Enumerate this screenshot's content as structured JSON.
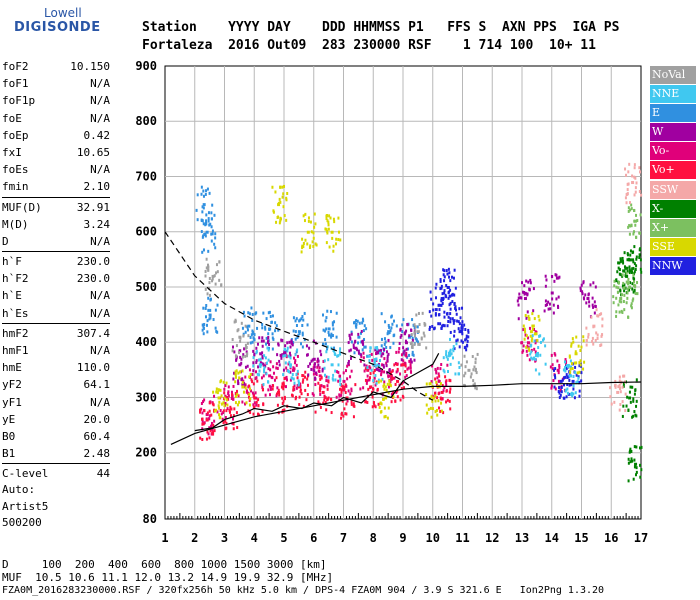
{
  "logo": {
    "line1": "Lowell",
    "line2": "DIGISONDE"
  },
  "header": {
    "labels": "Station    YYYY DAY    DDD HHMMSS P1   FFS S  AXN PPS  IGA PS",
    "values": "Fortaleza  2016 Out09  283 230000 RSF    1 714 100  10+ 11"
  },
  "params": [
    {
      "k": "foF2",
      "v": "10.150"
    },
    {
      "k": "foF1",
      "v": "N/A"
    },
    {
      "k": "foF1p",
      "v": "N/A"
    },
    {
      "k": "foE",
      "v": "N/A"
    },
    {
      "k": "foEp",
      "v": "0.42"
    },
    {
      "k": "fxI",
      "v": "10.65"
    },
    {
      "k": "foEs",
      "v": "N/A"
    },
    {
      "k": "fmin",
      "v": "2.10"
    },
    {
      "sep": true
    },
    {
      "k": "MUF(D)",
      "v": "32.91"
    },
    {
      "k": "M(D)",
      "v": "3.24"
    },
    {
      "k": "D",
      "v": "N/A"
    },
    {
      "sep": true
    },
    {
      "k": "h`F",
      "v": "230.0"
    },
    {
      "k": "h`F2",
      "v": "230.0"
    },
    {
      "k": "h`E",
      "v": "N/A"
    },
    {
      "k": "h`Es",
      "v": "N/A"
    },
    {
      "sep": true
    },
    {
      "k": "hmF2",
      "v": "307.4"
    },
    {
      "k": "hmF1",
      "v": "N/A"
    },
    {
      "k": "hmE",
      "v": "110.0"
    },
    {
      "k": "yF2",
      "v": "64.1"
    },
    {
      "k": "yF1",
      "v": "N/A"
    },
    {
      "k": "yE",
      "v": "20.0"
    },
    {
      "k": "B0",
      "v": "60.4"
    },
    {
      "k": "B1",
      "v": "2.48"
    },
    {
      "sep": true
    },
    {
      "k": "C-level",
      "v": "44"
    }
  ],
  "auto": [
    "Auto:",
    "Artist5",
    "500200"
  ],
  "legend": [
    {
      "label": "NoVal",
      "color": "#a0a0a0"
    },
    {
      "label": "NNE",
      "color": "#40c8f0"
    },
    {
      "label": "E",
      "color": "#3090e0"
    },
    {
      "label": "W",
      "color": "#a000a0"
    },
    {
      "label": "Vo-",
      "color": "#e0007a"
    },
    {
      "label": "Vo+",
      "color": "#ff1040"
    },
    {
      "label": "SSW",
      "color": "#f4a8a8"
    },
    {
      "label": "X-",
      "color": "#008000"
    },
    {
      "label": "X+",
      "color": "#7cc060"
    },
    {
      "label": "SSE",
      "color": "#d8d800"
    },
    {
      "label": "NNW",
      "color": "#2020e0"
    }
  ],
  "bottom": {
    "d_line": "D     100  200  400  600  800 1000 1500 3000 [km]",
    "muf_line": "MUF  10.5 10.6 11.1 12.0 13.2 14.9 19.9 32.9 [MHz]",
    "info_line": "FZA0M_2016283230000.RSF / 320fx256h 50 kHz 5.0 km / DPS-4 FZA0M 904 / 3.9 S 321.6 E   Ion2Png 1.3.20"
  },
  "chart_data": {
    "type": "scatter",
    "xlabel": "",
    "ylabel": "",
    "x_ticks": [
      "1",
      "2",
      "3",
      "4",
      "5",
      "6",
      "7",
      "8",
      "9",
      "10",
      "11",
      "12",
      "13",
      "14",
      "15",
      "16",
      "17"
    ],
    "y_ticks": [
      "80",
      "200",
      "300",
      "400",
      "500",
      "600",
      "700",
      "800",
      "900"
    ],
    "xlim": [
      1,
      17
    ],
    "ylim": [
      80,
      900
    ],
    "grid": true,
    "legend_position": "right",
    "series": [
      {
        "name": "E",
        "color": "#3090e0",
        "points": [
          [
            3.8,
            430
          ],
          [
            4.5,
            425
          ],
          [
            5.5,
            420
          ],
          [
            6.5,
            425
          ],
          [
            7.5,
            410
          ],
          [
            8.5,
            420
          ],
          [
            9.2,
            410
          ],
          [
            2.5,
            450
          ],
          [
            2.4,
            600
          ],
          [
            2.3,
            650
          ]
        ]
      },
      {
        "name": "Vo-",
        "color": "#e0007a",
        "points": [
          [
            2.4,
            270
          ],
          [
            3.0,
            290
          ],
          [
            3.8,
            320
          ],
          [
            4.5,
            340
          ],
          [
            5.3,
            350
          ],
          [
            6.2,
            340
          ],
          [
            7.0,
            330
          ],
          [
            7.8,
            350
          ],
          [
            8.5,
            340
          ],
          [
            9.0,
            360
          ],
          [
            10.2,
            330
          ],
          [
            13.2,
            400
          ],
          [
            14.2,
            350
          ]
        ]
      },
      {
        "name": "Vo+",
        "color": "#ff1040",
        "points": [
          [
            2.4,
            260
          ],
          [
            3.2,
            280
          ],
          [
            4.0,
            300
          ],
          [
            4.8,
            310
          ],
          [
            5.5,
            320
          ],
          [
            6.3,
            310
          ],
          [
            7.1,
            300
          ],
          [
            7.9,
            320
          ],
          [
            8.8,
            330
          ],
          [
            10.3,
            310
          ]
        ]
      },
      {
        "name": "W",
        "color": "#a000a0",
        "points": [
          [
            3.5,
            360
          ],
          [
            4.2,
            380
          ],
          [
            5.0,
            380
          ],
          [
            6.0,
            370
          ],
          [
            7.4,
            390
          ],
          [
            8.3,
            380
          ],
          [
            9.1,
            400
          ],
          [
            13.1,
            480
          ],
          [
            14.0,
            490
          ],
          [
            15.2,
            480
          ]
        ]
      },
      {
        "name": "NNW",
        "color": "#2020e0",
        "points": [
          [
            10.1,
            460
          ],
          [
            10.3,
            480
          ],
          [
            10.5,
            500
          ],
          [
            10.7,
            440
          ],
          [
            10.9,
            420
          ],
          [
            14.3,
            330
          ],
          [
            14.7,
            330
          ]
        ]
      },
      {
        "name": "NNE",
        "color": "#40c8f0",
        "points": [
          [
            4.2,
            360
          ],
          [
            5.2,
            360
          ],
          [
            6.6,
            360
          ],
          [
            8.0,
            360
          ],
          [
            10.6,
            380
          ],
          [
            13.5,
            380
          ],
          [
            14.6,
            340
          ]
        ]
      },
      {
        "name": "SSE",
        "color": "#d8d800",
        "points": [
          [
            2.8,
            300
          ],
          [
            3.6,
            320
          ],
          [
            5.8,
            600
          ],
          [
            6.6,
            600
          ],
          [
            8.4,
            300
          ],
          [
            10.0,
            300
          ],
          [
            13.3,
            420
          ],
          [
            14.8,
            380
          ],
          [
            4.8,
            650
          ]
        ]
      },
      {
        "name": "X-",
        "color": "#008000",
        "points": [
          [
            16.4,
            530
          ],
          [
            16.5,
            520
          ],
          [
            16.6,
            300
          ],
          [
            16.7,
            550
          ],
          [
            16.8,
            180
          ]
        ]
      },
      {
        "name": "X+",
        "color": "#7cc060",
        "points": [
          [
            16.3,
            480
          ],
          [
            16.6,
            500
          ],
          [
            16.8,
            620
          ]
        ]
      },
      {
        "name": "SSW",
        "color": "#f4a8a8",
        "points": [
          [
            16.7,
            690
          ],
          [
            15.4,
            430
          ],
          [
            16.2,
            310
          ]
        ]
      },
      {
        "name": "NoVal",
        "color": "#a0a0a0",
        "points": [
          [
            2.6,
            520
          ],
          [
            3.5,
            410
          ],
          [
            9.5,
            420
          ],
          [
            11.2,
            350
          ]
        ]
      }
    ],
    "curves": [
      {
        "name": "h'F trace",
        "style": "dashed",
        "points": [
          [
            1.0,
            600
          ],
          [
            2.0,
            520
          ],
          [
            3.0,
            470
          ],
          [
            4.0,
            440
          ],
          [
            5.0,
            420
          ],
          [
            6.0,
            400
          ],
          [
            7.0,
            380
          ],
          [
            8.0,
            360
          ],
          [
            9.0,
            330
          ],
          [
            9.5,
            310
          ],
          [
            10.0,
            295
          ]
        ]
      },
      {
        "name": "upper profile",
        "style": "solid",
        "points": [
          [
            1.2,
            215
          ],
          [
            2.0,
            235
          ],
          [
            3.0,
            250
          ],
          [
            4.0,
            265
          ],
          [
            5.0,
            275
          ],
          [
            6.0,
            285
          ],
          [
            7.0,
            295
          ],
          [
            8.0,
            305
          ],
          [
            9.0,
            315
          ],
          [
            10.0,
            320
          ],
          [
            11.0,
            320
          ],
          [
            12.0,
            322
          ],
          [
            13.0,
            325
          ],
          [
            14.0,
            325
          ],
          [
            15.0,
            325
          ],
          [
            16.0,
            327
          ],
          [
            17.0,
            328
          ]
        ]
      },
      {
        "name": "lower profile",
        "style": "solid",
        "points": [
          [
            2.0,
            240
          ],
          [
            2.6,
            245
          ],
          [
            3.0,
            260
          ],
          [
            3.6,
            270
          ],
          [
            4.0,
            280
          ],
          [
            4.6,
            275
          ],
          [
            5.0,
            285
          ],
          [
            5.6,
            280
          ],
          [
            6.0,
            290
          ],
          [
            6.6,
            285
          ],
          [
            7.0,
            300
          ],
          [
            7.6,
            290
          ],
          [
            8.0,
            310
          ],
          [
            8.6,
            300
          ],
          [
            9.0,
            330
          ],
          [
            9.5,
            345
          ],
          [
            10.0,
            360
          ],
          [
            10.2,
            380
          ]
        ]
      }
    ]
  }
}
